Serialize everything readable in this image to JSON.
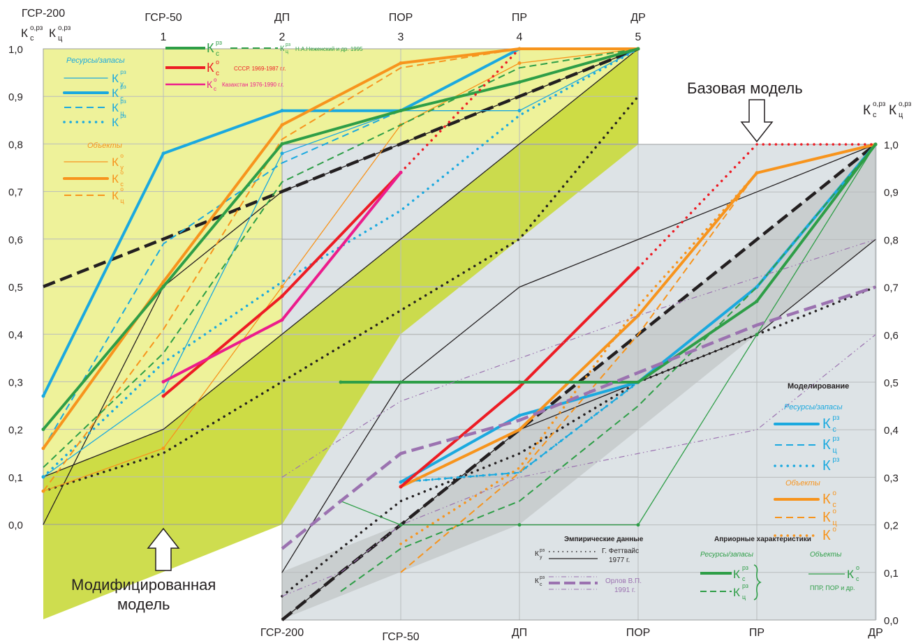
{
  "chart_data": {
    "type": "line",
    "stages": [
      "ГСР-200",
      "ГСР-50",
      "ДП",
      "ПОР",
      "ПР",
      "ДР"
    ],
    "top_stage_numbers": [
      "",
      "1",
      "2",
      "3",
      "4",
      "5"
    ],
    "left_axis": {
      "title_main": "К",
      "title_subs": [
        "с",
        "ц"
      ],
      "title_sups": [
        "о,рз",
        "о,рз"
      ],
      "range": [
        0,
        1
      ],
      "ticks": [
        "0,0",
        "0,1",
        "0,2",
        "0,3",
        "0,4",
        "0,5",
        "0,6",
        "0,7",
        "0,8",
        "0,9",
        "1,0"
      ]
    },
    "right_axis": {
      "title_main": "К",
      "title_subs": [
        "с",
        "ц"
      ],
      "title_sups": [
        "о,рз",
        "о,рз"
      ],
      "range": [
        0,
        1
      ],
      "ticks": [
        "0,0",
        "0,1",
        "0,2",
        "0,3",
        "0,4",
        "0,5",
        "0,6",
        "0,7",
        "0,8",
        "0,9",
        "1,0"
      ]
    },
    "modified_model": {
      "label_line1": "Модифицированная",
      "label_line2": "модель",
      "series": [
        {
          "key": "Ky_rz",
          "color": "#1ba9df",
          "style": "thin",
          "values": [
            0.1,
            0.28,
            0.78,
            0.87,
            0.87,
            1.0
          ]
        },
        {
          "key": "Kc_rz",
          "color": "#1ba9df",
          "style": "thick",
          "values": [
            0.27,
            0.78,
            0.87,
            0.87,
            1.0,
            1.0
          ]
        },
        {
          "key": "Kts_rz",
          "color": "#1ba9df",
          "style": "dash",
          "values": [
            0.16,
            0.59,
            0.76,
            0.87,
            0.93,
            1.0
          ]
        },
        {
          "key": "K_rz",
          "color": "#1ba9df",
          "style": "dot",
          "values": [
            0.1,
            0.34,
            0.51,
            0.66,
            0.86,
            1.0
          ]
        },
        {
          "key": "Ky_o",
          "color": "#f7941d",
          "style": "thin",
          "values": [
            0.07,
            0.16,
            0.5,
            0.84,
            0.97,
            1.0
          ]
        },
        {
          "key": "Kc_o",
          "color": "#f7941d",
          "style": "thick",
          "values": [
            0.16,
            0.51,
            0.84,
            0.97,
            1.0,
            1.0
          ]
        },
        {
          "key": "Kts_o",
          "color": "#f7941d",
          "style": "dash",
          "values": [
            0.07,
            0.41,
            0.81,
            0.96,
            1.0,
            1.0
          ]
        },
        {
          "key": "Kc_rz_nezh",
          "color": "#2e9e47",
          "style": "thick",
          "values": [
            0.2,
            0.5,
            0.8,
            0.87,
            0.93,
            1.0
          ]
        },
        {
          "key": "Kts_rz_nezh",
          "color": "#2e9e47",
          "style": "dash",
          "values": [
            0.12,
            0.36,
            0.72,
            0.84,
            0.96,
            1.0
          ]
        },
        {
          "key": "Kc_o_ussr",
          "color": "#ed1c24",
          "style": "thick",
          "values": [
            null,
            0.27,
            0.48,
            0.74,
            null,
            null
          ]
        },
        {
          "key": "Kc_o_ussr_ext",
          "color": "#ed1c24",
          "style": "dot",
          "values": [
            null,
            null,
            null,
            0.74,
            1.0,
            null
          ]
        },
        {
          "key": "Kc_o_kaz",
          "color": "#ec1c8c",
          "style": "thick",
          "values": [
            null,
            0.3,
            0.43,
            0.74,
            null,
            null
          ]
        }
      ],
      "model_lines": [
        {
          "key": "upper",
          "color": "#231f20",
          "style": "solid",
          "values": [
            0.1,
            0.2,
            0.4,
            0.6,
            0.8,
            1.0
          ]
        },
        {
          "key": "mid_dash",
          "color": "#231f20",
          "style": "longdash",
          "values": [
            0.5,
            0.6,
            0.7,
            0.8,
            0.9,
            1.0
          ]
        },
        {
          "key": "mid",
          "color": "#231f20",
          "style": "solid",
          "values": [
            0.0,
            0.5,
            0.7,
            0.8,
            0.9,
            1.0
          ]
        },
        {
          "key": "dotted",
          "color": "#231f20",
          "style": "dot",
          "values": [
            0.07,
            0.15,
            0.3,
            0.45,
            0.6,
            0.9
          ]
        }
      ]
    },
    "base_model": {
      "label": "Базовая модель",
      "series": [
        {
          "key": "Kc_rz",
          "color": "#1ba9df",
          "style": "thick",
          "values": [
            null,
            null,
            0.29,
            0.43,
            0.5,
            0.7,
            1.0
          ]
        },
        {
          "key": "Kts_rz",
          "color": "#1ba9df",
          "style": "dash",
          "values": [
            null,
            null,
            0.29,
            0.31,
            0.5,
            0.7,
            1.0
          ]
        },
        {
          "key": "K_rz",
          "color": "#1ba9df",
          "style": "dot",
          "values": [
            null,
            null,
            0.29,
            0.31,
            0.5,
            0.7,
            1.0
          ]
        },
        {
          "key": "Kc_o",
          "color": "#f7941d",
          "style": "thick",
          "values": [
            null,
            null,
            0.28,
            0.4,
            0.64,
            0.94,
            1.0
          ]
        },
        {
          "key": "Kts_o",
          "color": "#f7941d",
          "style": "dash",
          "values": [
            null,
            null,
            0.1,
            0.31,
            0.6,
            0.94,
            1.0
          ]
        },
        {
          "key": "K_o",
          "color": "#f7941d",
          "style": "dot",
          "values": [
            null,
            null,
            0.16,
            0.32,
            0.66,
            0.94,
            1.0
          ]
        },
        {
          "key": "Kc_o_red",
          "color": "#ed1c24",
          "style": "thick",
          "values": [
            null,
            null,
            0.28,
            0.49,
            0.74,
            null,
            null
          ]
        },
        {
          "key": "Kc_o_red_ext",
          "color": "#ed1c24",
          "style": "dot",
          "values": [
            null,
            null,
            null,
            null,
            0.74,
            1.0,
            1.0
          ]
        },
        {
          "key": "Kc_rz_aprior",
          "color": "#2e9e47",
          "style": "thick",
          "values": [
            null,
            0.5,
            0.5,
            0.5,
            0.5,
            0.67,
            1.0
          ]
        },
        {
          "key": "Kts_rz_aprior",
          "color": "#2e9e47",
          "style": "dash",
          "values": [
            null,
            0.06,
            0.15,
            0.25,
            0.45,
            0.7,
            1.0
          ]
        },
        {
          "key": "Kc_o_aprior",
          "color": "#2e9e47",
          "style": "thin",
          "values": [
            null,
            0.25,
            0.2,
            0.2,
            0.2,
            0.6,
            1.0
          ]
        },
        {
          "key": "orlov_Kc",
          "color": "#9b72b0",
          "style": "longdash",
          "values": [
            0.15,
            0.25,
            0.35,
            0.42,
            0.52,
            0.62,
            0.7
          ]
        },
        {
          "key": "orlov_upper",
          "color": "#9b72b0",
          "style": "dashdot",
          "values": [
            0.3,
            0.38,
            0.46,
            0.55,
            0.64,
            0.72,
            0.8
          ]
        },
        {
          "key": "orlov_lower",
          "color": "#9b72b0",
          "style": "dashdot",
          "values": [
            0.05,
            0.1,
            0.2,
            0.3,
            0.35,
            0.4,
            0.6
          ]
        }
      ],
      "model_lines": [
        {
          "key": "ref_top",
          "color": "#231f20",
          "style": "solid",
          "values": [
            0.1,
            0.3,
            0.5,
            0.7,
            0.8,
            0.9,
            1.0
          ]
        },
        {
          "key": "ref_bot",
          "color": "#231f20",
          "style": "solid",
          "values": [
            0.0,
            0.1,
            0.2,
            0.4,
            0.5,
            0.6,
            0.8
          ]
        },
        {
          "key": "ref_dash",
          "color": "#231f20",
          "style": "longdash",
          "values": [
            0.0,
            0.1,
            0.2,
            0.4,
            0.6,
            0.8,
            1.0
          ]
        },
        {
          "key": "ref_dot",
          "color": "#231f20",
          "style": "dot",
          "values": [
            0.05,
            0.15,
            0.25,
            0.35,
            0.5,
            0.6,
            0.7
          ]
        }
      ]
    },
    "legend_top": {
      "heading_rz": "Ресурсы/запасы",
      "heading_obj": "Объекты",
      "entries_rz": [
        {
          "main": "К",
          "sub": "у",
          "sup": "рз",
          "style": "thin"
        },
        {
          "main": "К",
          "sub": "с",
          "sup": "рз",
          "style": "thick"
        },
        {
          "main": "К",
          "sub": "ц",
          "sup": "рз",
          "style": "dash"
        },
        {
          "main": "К",
          "sub": "",
          "sup": "рз",
          "style": "dot"
        }
      ],
      "entries_obj": [
        {
          "main": "К",
          "sub": "у",
          "sup": "о",
          "style": "thin"
        },
        {
          "main": "К",
          "sub": "с",
          "sup": "о",
          "style": "thick"
        },
        {
          "main": "К",
          "sub": "ц",
          "sup": "о",
          "style": "dash"
        }
      ],
      "nezh_Kc": {
        "main": "К",
        "sub": "с",
        "sup": "рз"
      },
      "nezh_Kts": {
        "main": "К",
        "sub": "ц",
        "sup": "рз"
      },
      "nezh_text": "Н.А.Неженский и др. 1995",
      "ussr": {
        "main": "К",
        "sub": "с",
        "sup": "о"
      },
      "ussr_text": "СССР. 1969-1987 г.г.",
      "kaz": {
        "main": "К",
        "sub": "с",
        "sup": "о"
      },
      "kaz_text": "Казахстан 1976-1990 г.г."
    },
    "legend_right": {
      "heading": "Моделирование",
      "heading_rz": "Ресурсы/запасы",
      "heading_obj": "Объекты",
      "entries_rz": [
        {
          "main": "К",
          "sub": "с",
          "sup": "рз",
          "style": "thick"
        },
        {
          "main": "К",
          "sub": "ц",
          "sup": "рз",
          "style": "dash"
        },
        {
          "main": "К",
          "sub": "",
          "sup": "рз",
          "style": "dot"
        }
      ],
      "entries_obj": [
        {
          "main": "К",
          "sub": "с",
          "sup": "о",
          "style": "thick"
        },
        {
          "main": "К",
          "sub": "ц",
          "sup": "о",
          "style": "dash"
        },
        {
          "main": "К",
          "sub": "",
          "sup": "о",
          "style": "dot"
        }
      ]
    },
    "legend_empirical": {
      "heading": "Эмпирические данные",
      "fett_line1": "Г. Феттвайс",
      "fett_line2": "1977 г.",
      "fett_label": {
        "main": "К",
        "sub": "у",
        "sup": "рз"
      },
      "orlov_line1": "Орлов В.П.",
      "orlov_line2": "1991 г.",
      "orlov_label": {
        "main": "К",
        "sub": "с",
        "sup": "рз"
      }
    },
    "legend_aprior": {
      "heading": "Априорные характеристики",
      "col_rz": "Ресурсы/запасы",
      "col_obj": "Объекты",
      "rz_Kc": {
        "main": "К",
        "sub": "с",
        "sup": "рз"
      },
      "rz_Kts": {
        "main": "К",
        "sub": "ц",
        "sup": "рз"
      },
      "obj_Kc": {
        "main": "К",
        "sub": "с",
        "sup": "о"
      },
      "obj_note": "ППР,  ПОР и др."
    },
    "colors": {
      "blue": "#1ba9df",
      "orange": "#f7941d",
      "green": "#2e9e47",
      "red": "#ed1c24",
      "magenta": "#ec1c8c",
      "purple": "#9b72b0",
      "yellow_area": "#eef29a",
      "olive_band": "#c9d93c",
      "grey_area": "#dde3e6",
      "grey_band": "#c7cbcc"
    }
  }
}
